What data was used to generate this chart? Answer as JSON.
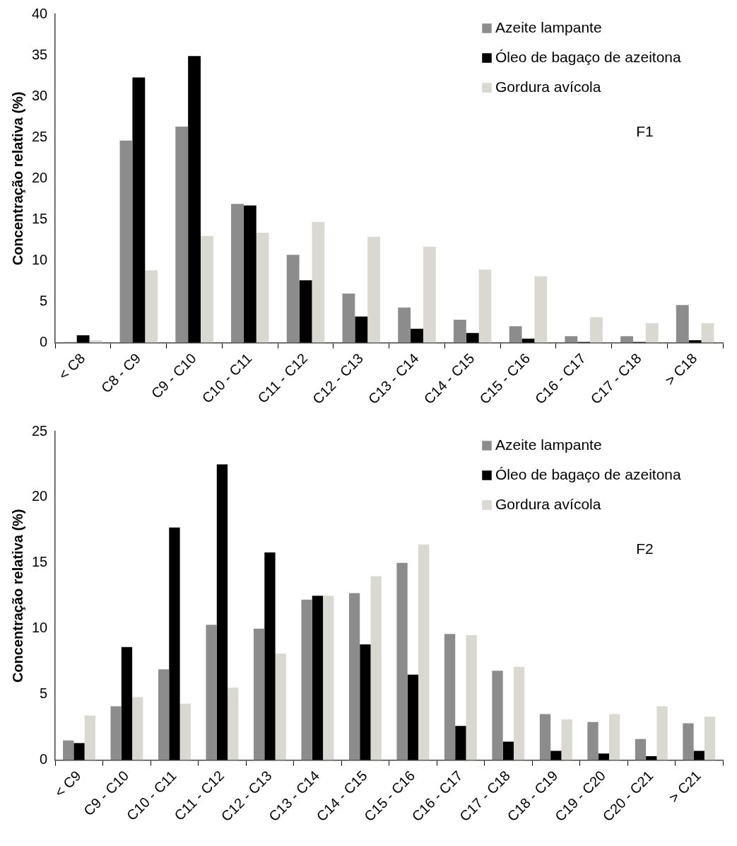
{
  "chart_data": [
    {
      "type": "bar",
      "ylabel": "Concentração relativa (%)",
      "categories": [
        "< C8",
        "C8 - C9",
        "C9 - C10",
        "C10 - C11",
        "C11 - C12",
        "C12 - C13",
        "C13 - C14",
        "C14 - C15",
        "C15 - C16",
        "C16 - C17",
        "C17 - C18",
        "> C18"
      ],
      "series": [
        {
          "name": "Azeite lampante",
          "color": "#8c8c8c",
          "values": [
            0.1,
            24.6,
            26.3,
            16.9,
            10.7,
            6.0,
            4.3,
            2.8,
            2.0,
            0.8,
            0.8,
            4.6
          ]
        },
        {
          "name": "Óleo de bagaço de azeitona",
          "color": "#000000",
          "values": [
            0.9,
            32.3,
            34.9,
            16.7,
            7.6,
            3.2,
            1.7,
            1.2,
            0.5,
            0.1,
            0.1,
            0.3
          ]
        },
        {
          "name": "Gordura avícola",
          "color": "#d9d9d2",
          "values": [
            0.3,
            8.8,
            13.0,
            13.4,
            14.7,
            12.9,
            11.7,
            8.9,
            8.1,
            3.1,
            2.4,
            2.4
          ]
        }
      ],
      "ylim": [
        0,
        40
      ],
      "yticks": [
        0,
        5,
        10,
        15,
        20,
        25,
        30,
        35,
        40
      ],
      "grid": false,
      "legend": "top right",
      "annotations": [
        "F1"
      ]
    },
    {
      "type": "bar",
      "ylabel": "Concentração relativa (%)",
      "categories": [
        "< C9",
        "C9 - C10",
        "C10 - C11",
        "C11 - C12",
        "C12 - C13",
        "C13 - C14",
        "C14 - C15",
        "C15 - C16",
        "C16 - C17",
        "C17 - C18",
        "C18 - C19",
        "C19 - C20",
        "C20 - C21",
        "> C21"
      ],
      "series": [
        {
          "name": "Azeite lampante",
          "color": "#8c8c8c",
          "values": [
            1.5,
            4.1,
            6.9,
            10.3,
            10.0,
            12.2,
            12.7,
            15.0,
            9.6,
            6.8,
            3.5,
            2.9,
            1.6,
            2.8
          ]
        },
        {
          "name": "Óleo de bagaço de azeitona",
          "color": "#000000",
          "values": [
            1.3,
            8.6,
            17.7,
            22.5,
            15.8,
            12.5,
            8.8,
            6.5,
            2.6,
            1.4,
            0.7,
            0.5,
            0.3,
            0.7
          ]
        },
        {
          "name": "Gordura avícola",
          "color": "#d9d9d2",
          "values": [
            3.4,
            4.8,
            4.3,
            5.5,
            8.1,
            12.5,
            14.0,
            16.4,
            9.5,
            7.1,
            3.1,
            3.5,
            4.1,
            3.3
          ]
        }
      ],
      "ylim": [
        0,
        25
      ],
      "yticks": [
        0,
        5,
        10,
        15,
        20,
        25
      ],
      "grid": false,
      "legend": "top right",
      "annotations": [
        "F2"
      ]
    }
  ]
}
